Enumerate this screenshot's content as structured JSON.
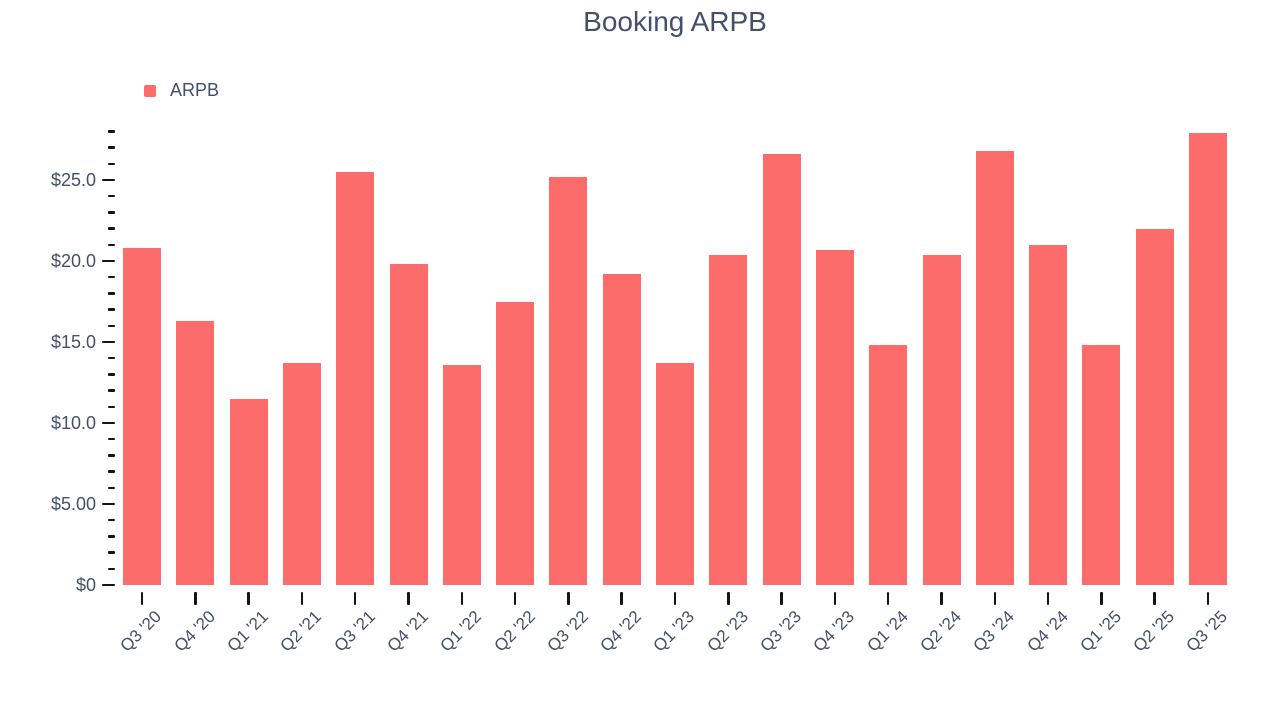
{
  "title": "Booking ARPB",
  "legend": {
    "label": "ARPB"
  },
  "colors": {
    "bar": "#fc6c6a",
    "text": "#44506a",
    "tick": "#141414"
  },
  "chart_data": {
    "type": "bar",
    "title": "Booking ARPB",
    "series_name": "ARPB",
    "categories": [
      "Q3 '20",
      "Q4 '20",
      "Q1 '21",
      "Q2 '21",
      "Q3 '21",
      "Q4 '21",
      "Q1 '22",
      "Q2 '22",
      "Q3 '22",
      "Q4 '22",
      "Q1 '23",
      "Q2 '23",
      "Q3 '23",
      "Q4 '23",
      "Q1 '24",
      "Q2 '24",
      "Q3 '24",
      "Q4 '24",
      "Q1 '25",
      "Q2 '25",
      "Q3 '25"
    ],
    "values": [
      20.8,
      16.3,
      11.5,
      13.7,
      25.5,
      19.8,
      13.6,
      17.5,
      25.2,
      19.2,
      13.7,
      20.4,
      26.6,
      20.7,
      14.8,
      20.4,
      26.8,
      21.0,
      14.8,
      22.0,
      27.9
    ],
    "xlabel": "",
    "ylabel": "",
    "ylim": [
      0,
      28
    ],
    "y_major_ticks": [
      {
        "value": 0,
        "label": "$0"
      },
      {
        "value": 5,
        "label": "$5.00"
      },
      {
        "value": 10,
        "label": "$10.0"
      },
      {
        "value": 15,
        "label": "$15.0"
      },
      {
        "value": 20,
        "label": "$20.0"
      },
      {
        "value": 25,
        "label": "$25.0"
      }
    ],
    "y_minor_step": 1,
    "grid": false,
    "legend_position": "top-left"
  }
}
